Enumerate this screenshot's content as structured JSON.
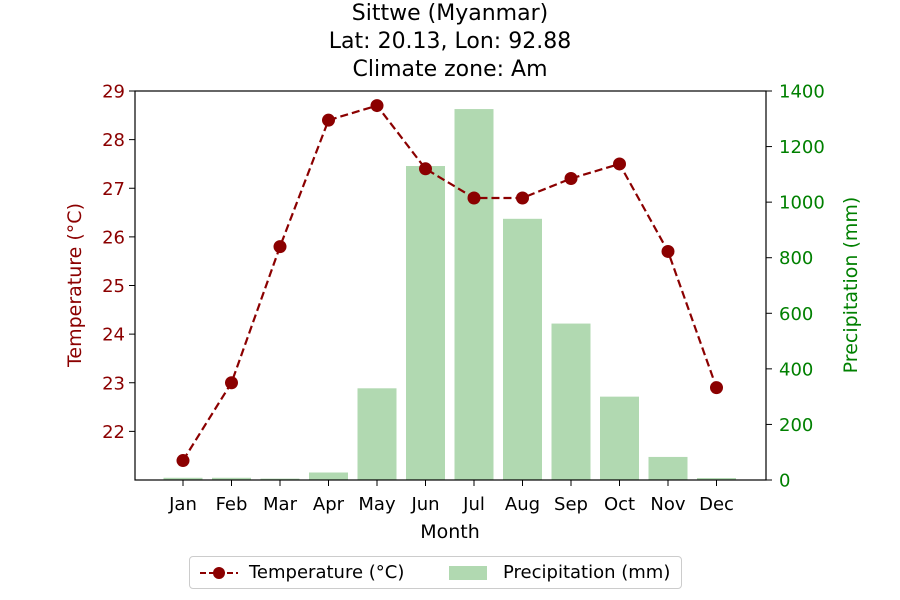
{
  "chart_data": {
    "type": "bar+line",
    "title_lines": [
      "Sittwe (Myanmar)",
      "Lat: 20.13, Lon: 92.88",
      "Climate zone: Am"
    ],
    "xlabel": "Month",
    "ylabel_left": "Temperature (°C)",
    "ylabel_right": "Precipitation (mm)",
    "categories": [
      "Jan",
      "Feb",
      "Mar",
      "Apr",
      "May",
      "Jun",
      "Jul",
      "Aug",
      "Sep",
      "Oct",
      "Nov",
      "Dec"
    ],
    "series": [
      {
        "name": "Temperature (°C)",
        "type": "line",
        "axis": "left",
        "color": "#8b0000",
        "values": [
          21.4,
          23.0,
          25.8,
          28.4,
          28.7,
          27.4,
          26.8,
          26.8,
          27.2,
          27.5,
          25.7,
          22.9
        ]
      },
      {
        "name": "Precipitation (mm)",
        "type": "bar",
        "axis": "right",
        "color": "#b1d9b1",
        "values": [
          8,
          8,
          5,
          27,
          330,
          1130,
          1335,
          940,
          563,
          300,
          83,
          7
        ]
      }
    ],
    "ylim_left": [
      21.0,
      29.0
    ],
    "yticks_left": [
      22,
      23,
      24,
      25,
      26,
      27,
      28,
      29
    ],
    "ylim_right": [
      0,
      1400
    ],
    "yticks_right": [
      0,
      200,
      400,
      600,
      800,
      1000,
      1200,
      1400
    ],
    "left_axis_color": "#8b0000",
    "right_axis_color": "#008000",
    "grid": false,
    "legend_position": "bottom-center"
  }
}
